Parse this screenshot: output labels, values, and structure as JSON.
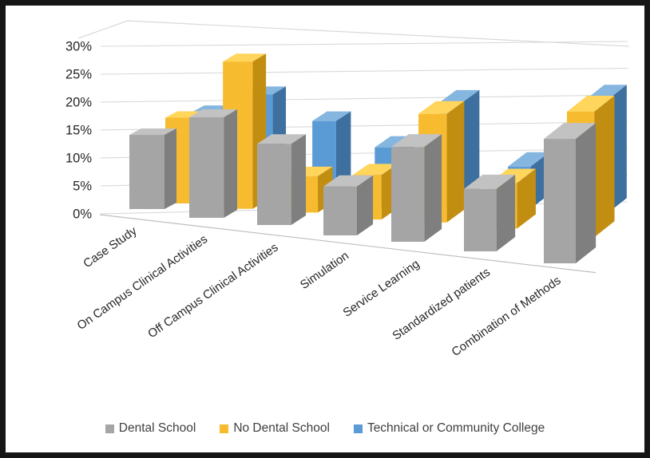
{
  "chart_data": {
    "type": "bar",
    "projection": "3d-column",
    "title": "",
    "categories": [
      "Case Study",
      "On Campus Clinical Activities",
      "Off Campus Clinical Activities",
      "Simulation",
      "Service Learning",
      "Standardized patients",
      "Combination of Methods"
    ],
    "series": [
      {
        "name": "Dental School",
        "color": "#A5A5A5",
        "side_color": "#7F7F7F",
        "top_color": "#C2C2C2",
        "values": [
          14,
          17,
          12,
          4,
          11,
          3,
          12
        ]
      },
      {
        "name": "No Dental School",
        "color": "#F7BB2F",
        "side_color": "#C28E12",
        "top_color": "#FFD55C",
        "values": [
          17,
          27,
          6,
          6,
          17,
          4,
          17
        ]
      },
      {
        "name": "Technical or Community College",
        "color": "#5B9BD5",
        "side_color": "#3D6F9F",
        "top_color": "#85B6E0",
        "values": [
          18,
          21,
          16,
          11,
          19,
          7,
          19
        ]
      }
    ],
    "y_axis": {
      "ticks": [
        "0%",
        "5%",
        "10%",
        "15%",
        "20%",
        "25%",
        "30%"
      ],
      "min": 0,
      "max": 30,
      "step": 5,
      "unit": "%"
    },
    "x_axis_label": "",
    "y_axis_label": "",
    "grid": true,
    "legend_position": "bottom"
  },
  "colors": {
    "background": "#FFFFFF",
    "frame_border": "#161616",
    "gridline": "#D9D9D9",
    "wall_edge": "#D9D9D9",
    "axis_line": "#BFBFBF",
    "tick_label": "#262626",
    "category_label": "#262626",
    "legend_label": "#3F3F3F"
  }
}
